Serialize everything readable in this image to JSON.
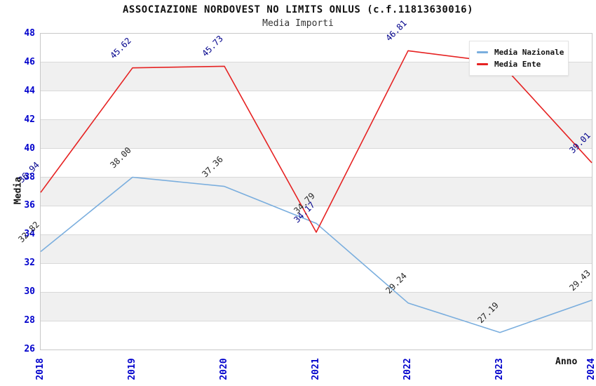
{
  "title": "ASSOCIAZIONE NORDOVEST NO LIMITS ONLUS (c.f.11813630016)",
  "subtitle": "Media Importi",
  "axes": {
    "y_label": "Media",
    "x_label": "Anno",
    "y_ticks": [
      48,
      46,
      44,
      42,
      40,
      38,
      36,
      34,
      32,
      30,
      28,
      26
    ],
    "x_ticks": [
      "2018",
      "2019",
      "2020",
      "2021",
      "2022",
      "2023",
      "2024"
    ]
  },
  "legend": {
    "position": "top-right",
    "items": [
      {
        "label": "Media Nazionale",
        "color": "#7aaede"
      },
      {
        "label": "Media Ente",
        "color": "#e62222"
      }
    ]
  },
  "chart_data": {
    "type": "line",
    "title": "ASSOCIAZIONE NORDOVEST NO LIMITS ONLUS (c.f.11813630016)",
    "subtitle": "Media Importi",
    "xlabel": "Anno",
    "ylabel": "Media",
    "x": [
      2018,
      2019,
      2020,
      2021,
      2022,
      2023,
      2024
    ],
    "ylim": [
      26,
      48
    ],
    "grid": true,
    "band_shading": true,
    "legend_position": "top-right",
    "series": [
      {
        "name": "Media Nazionale",
        "color": "#7aaede",
        "label_color": "#262626",
        "values": [
          32.82,
          38.0,
          37.36,
          34.79,
          29.24,
          27.19,
          29.43
        ],
        "hidden_label_indexes": []
      },
      {
        "name": "Media Ente",
        "color": "#e62222",
        "label_color": "#00008b",
        "values": [
          36.94,
          45.62,
          45.73,
          34.17,
          46.81,
          46.0,
          39.01
        ],
        "hidden_label_indexes": [
          5
        ],
        "note": "2023 point label hidden behind legend box; value estimated from line path"
      }
    ]
  },
  "colors": {
    "tick_label": "#0000cc",
    "band_gray": "#f0f0f0",
    "gridline": "#d9d9d9",
    "plot_border": "#c8c8c8",
    "title_text": "#111111"
  }
}
